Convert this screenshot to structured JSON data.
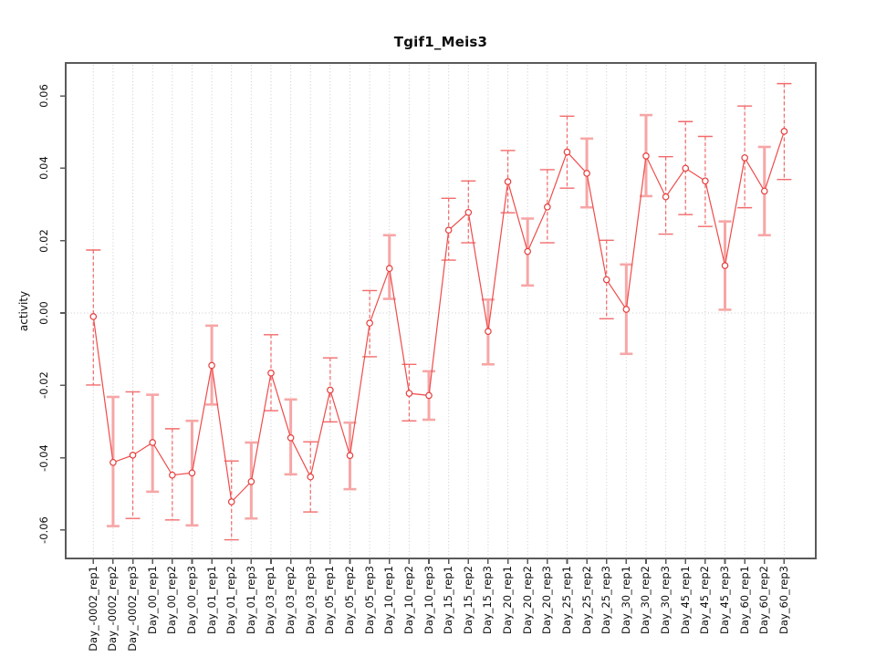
{
  "chart_data": {
    "type": "line",
    "title": "Tgif1_Meis3",
    "xlabel": "",
    "ylabel": "activity",
    "categories": [
      "Day_-0002_rep1",
      "Day_-0002_rep2",
      "Day_-0002_rep3",
      "Day_00_rep1",
      "Day_00_rep2",
      "Day_00_rep3",
      "Day_01_rep1",
      "Day_01_rep2",
      "Day_01_rep3",
      "Day_03_rep1",
      "Day_03_rep2",
      "Day_03_rep3",
      "Day_05_rep1",
      "Day_05_rep2",
      "Day_05_rep3",
      "Day_10_rep1",
      "Day_10_rep2",
      "Day_10_rep3",
      "Day_15_rep1",
      "Day_15_rep2",
      "Day_15_rep3",
      "Day_20_rep1",
      "Day_20_rep2",
      "Day_20_rep3",
      "Day_25_rep1",
      "Day_25_rep2",
      "Day_25_rep3",
      "Day_30_rep1",
      "Day_30_rep2",
      "Day_30_rep3",
      "Day_45_rep1",
      "Day_45_rep2",
      "Day_45_rep3",
      "Day_60_rep1",
      "Day_60_rep2",
      "Day_60_rep3"
    ],
    "series": [
      {
        "name": "activity",
        "values": [
          -0.001,
          -0.0413,
          -0.0393,
          -0.0358,
          -0.0448,
          -0.0442,
          -0.0145,
          -0.0522,
          -0.0466,
          -0.0166,
          -0.0345,
          -0.0453,
          -0.0213,
          -0.0394,
          -0.0028,
          0.0123,
          -0.0222,
          -0.0228,
          0.0229,
          0.0278,
          -0.0051,
          0.0363,
          0.017,
          0.0293,
          0.0445,
          0.0386,
          0.0092,
          0.001,
          0.0434,
          0.0321,
          0.04,
          0.0365,
          0.0131,
          0.0429,
          0.0337,
          0.0502
        ],
        "error_high": [
          0.0174,
          -0.0232,
          -0.0218,
          -0.0226,
          -0.032,
          -0.0298,
          -0.0035,
          -0.0409,
          -0.0358,
          -0.006,
          -0.0239,
          -0.0356,
          -0.0124,
          -0.0303,
          0.0062,
          0.0215,
          -0.0142,
          -0.0161,
          0.0317,
          0.0365,
          0.0037,
          0.0449,
          0.0261,
          0.0396,
          0.0544,
          0.0482,
          0.0201,
          0.0134,
          0.0547,
          0.0432,
          0.0529,
          0.0488,
          0.0253,
          0.0572,
          0.0459,
          0.0634
        ],
        "error_low": [
          -0.0199,
          -0.0589,
          -0.0568,
          -0.0494,
          -0.0572,
          -0.0587,
          -0.0253,
          -0.0627,
          -0.0568,
          -0.027,
          -0.0446,
          -0.055,
          -0.0301,
          -0.0487,
          -0.0121,
          0.0039,
          -0.0298,
          -0.0295,
          0.0146,
          0.0194,
          -0.0142,
          0.0277,
          0.0076,
          0.0194,
          0.0345,
          0.0292,
          -0.0016,
          -0.0113,
          0.0323,
          0.0218,
          0.0272,
          0.0239,
          0.0009,
          0.0291,
          0.0215,
          0.0369
        ],
        "wide_bar": [
          false,
          true,
          false,
          true,
          false,
          true,
          true,
          false,
          true,
          false,
          true,
          false,
          false,
          true,
          false,
          true,
          false,
          true,
          false,
          false,
          true,
          false,
          true,
          false,
          false,
          true,
          false,
          true,
          true,
          false,
          false,
          false,
          true,
          false,
          true,
          false
        ]
      }
    ],
    "yticks": {
      "values": [
        -0.06,
        -0.04,
        -0.02,
        0.0,
        0.02,
        0.04,
        0.06
      ],
      "labels": [
        "-0.06",
        "-0.04",
        "-0.02",
        "0.00",
        "0.02",
        "0.04",
        "0.06"
      ]
    },
    "ylim": [
      -0.0678,
      0.0691
    ],
    "grid": "vertical dotted per category; dotted horizontal reference line at 0",
    "legend": "none",
    "marker": "open-circle",
    "colors": {
      "line": "#ef4b4b",
      "point": "#e53e3e",
      "error_bar_thin": "#f26a6a",
      "error_bar_wide": "#f7a6a6",
      "grid": "#c9c9c9",
      "axis_box": "#5a5a5a",
      "text": "#0d0d0d",
      "background": "#ffffff"
    }
  }
}
